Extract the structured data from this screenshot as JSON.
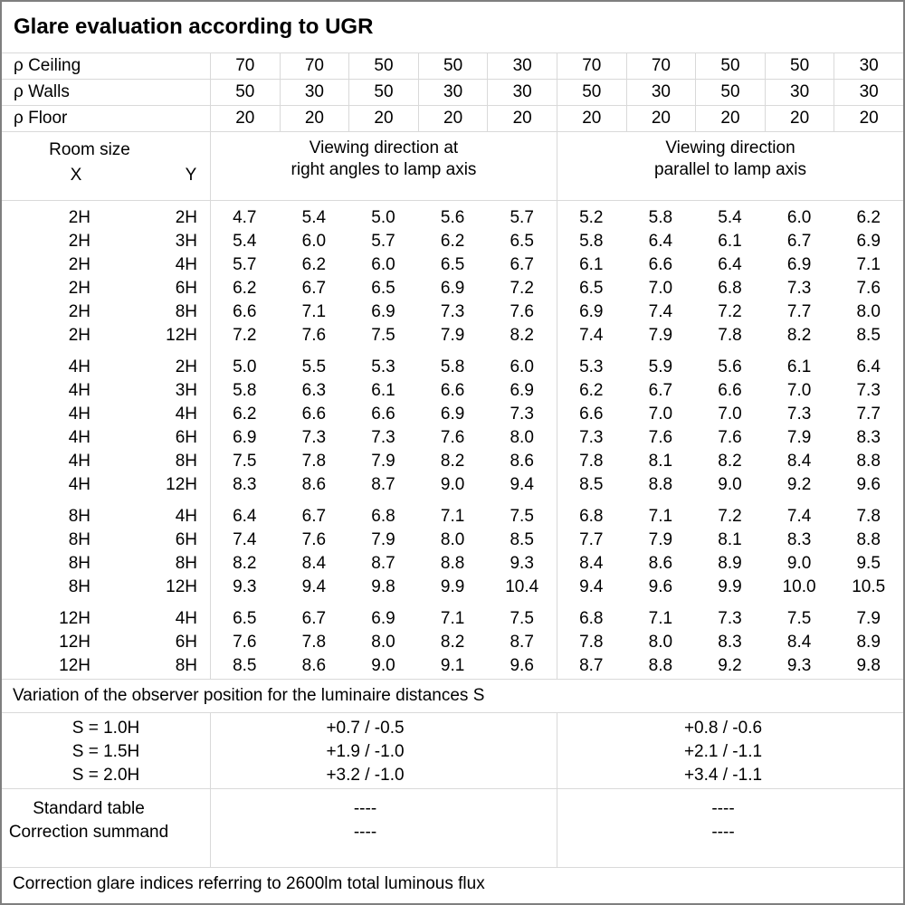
{
  "title": "Glare evaluation according to UGR",
  "reflectances": {
    "rows": [
      {
        "label": "ρ Ceiling",
        "values": [
          "70",
          "70",
          "50",
          "50",
          "30",
          "70",
          "70",
          "50",
          "50",
          "30"
        ]
      },
      {
        "label": "ρ Walls",
        "values": [
          "50",
          "30",
          "50",
          "30",
          "30",
          "50",
          "30",
          "50",
          "30",
          "30"
        ]
      },
      {
        "label": "ρ Floor",
        "values": [
          "20",
          "20",
          "20",
          "20",
          "20",
          "20",
          "20",
          "20",
          "20",
          "20"
        ]
      }
    ]
  },
  "header": {
    "room_size": "Room size",
    "x": "X",
    "y": "Y",
    "group_right_angles": [
      "Viewing direction at",
      "right angles to lamp axis"
    ],
    "group_parallel": [
      "Viewing direction",
      "parallel to lamp axis"
    ]
  },
  "ugr_blocks": [
    {
      "rows": [
        {
          "x": "2H",
          "y": "2H",
          "values": [
            "4.7",
            "5.4",
            "5.0",
            "5.6",
            "5.7",
            "5.2",
            "5.8",
            "5.4",
            "6.0",
            "6.2"
          ]
        },
        {
          "x": "2H",
          "y": "3H",
          "values": [
            "5.4",
            "6.0",
            "5.7",
            "6.2",
            "6.5",
            "5.8",
            "6.4",
            "6.1",
            "6.7",
            "6.9"
          ]
        },
        {
          "x": "2H",
          "y": "4H",
          "values": [
            "5.7",
            "6.2",
            "6.0",
            "6.5",
            "6.7",
            "6.1",
            "6.6",
            "6.4",
            "6.9",
            "7.1"
          ]
        },
        {
          "x": "2H",
          "y": "6H",
          "values": [
            "6.2",
            "6.7",
            "6.5",
            "6.9",
            "7.2",
            "6.5",
            "7.0",
            "6.8",
            "7.3",
            "7.6"
          ]
        },
        {
          "x": "2H",
          "y": "8H",
          "values": [
            "6.6",
            "7.1",
            "6.9",
            "7.3",
            "7.6",
            "6.9",
            "7.4",
            "7.2",
            "7.7",
            "8.0"
          ]
        },
        {
          "x": "2H",
          "y": "12H",
          "values": [
            "7.2",
            "7.6",
            "7.5",
            "7.9",
            "8.2",
            "7.4",
            "7.9",
            "7.8",
            "8.2",
            "8.5"
          ]
        }
      ]
    },
    {
      "rows": [
        {
          "x": "4H",
          "y": "2H",
          "values": [
            "5.0",
            "5.5",
            "5.3",
            "5.8",
            "6.0",
            "5.3",
            "5.9",
            "5.6",
            "6.1",
            "6.4"
          ]
        },
        {
          "x": "4H",
          "y": "3H",
          "values": [
            "5.8",
            "6.3",
            "6.1",
            "6.6",
            "6.9",
            "6.2",
            "6.7",
            "6.6",
            "7.0",
            "7.3"
          ]
        },
        {
          "x": "4H",
          "y": "4H",
          "values": [
            "6.2",
            "6.6",
            "6.6",
            "6.9",
            "7.3",
            "6.6",
            "7.0",
            "7.0",
            "7.3",
            "7.7"
          ]
        },
        {
          "x": "4H",
          "y": "6H",
          "values": [
            "6.9",
            "7.3",
            "7.3",
            "7.6",
            "8.0",
            "7.3",
            "7.6",
            "7.6",
            "7.9",
            "8.3"
          ]
        },
        {
          "x": "4H",
          "y": "8H",
          "values": [
            "7.5",
            "7.8",
            "7.9",
            "8.2",
            "8.6",
            "7.8",
            "8.1",
            "8.2",
            "8.4",
            "8.8"
          ]
        },
        {
          "x": "4H",
          "y": "12H",
          "values": [
            "8.3",
            "8.6",
            "8.7",
            "9.0",
            "9.4",
            "8.5",
            "8.8",
            "9.0",
            "9.2",
            "9.6"
          ]
        }
      ]
    },
    {
      "rows": [
        {
          "x": "8H",
          "y": "4H",
          "values": [
            "6.4",
            "6.7",
            "6.8",
            "7.1",
            "7.5",
            "6.8",
            "7.1",
            "7.2",
            "7.4",
            "7.8"
          ]
        },
        {
          "x": "8H",
          "y": "6H",
          "values": [
            "7.4",
            "7.6",
            "7.9",
            "8.0",
            "8.5",
            "7.7",
            "7.9",
            "8.1",
            "8.3",
            "8.8"
          ]
        },
        {
          "x": "8H",
          "y": "8H",
          "values": [
            "8.2",
            "8.4",
            "8.7",
            "8.8",
            "9.3",
            "8.4",
            "8.6",
            "8.9",
            "9.0",
            "9.5"
          ]
        },
        {
          "x": "8H",
          "y": "12H",
          "values": [
            "9.3",
            "9.4",
            "9.8",
            "9.9",
            "10.4",
            "9.4",
            "9.6",
            "9.9",
            "10.0",
            "10.5"
          ]
        }
      ]
    },
    {
      "rows": [
        {
          "x": "12H",
          "y": "4H",
          "values": [
            "6.5",
            "6.7",
            "6.9",
            "7.1",
            "7.5",
            "6.8",
            "7.1",
            "7.3",
            "7.5",
            "7.9"
          ]
        },
        {
          "x": "12H",
          "y": "6H",
          "values": [
            "7.6",
            "7.8",
            "8.0",
            "8.2",
            "8.7",
            "7.8",
            "8.0",
            "8.3",
            "8.4",
            "8.9"
          ]
        },
        {
          "x": "12H",
          "y": "8H",
          "values": [
            "8.5",
            "8.6",
            "9.0",
            "9.1",
            "9.6",
            "8.7",
            "8.8",
            "9.2",
            "9.3",
            "9.8"
          ]
        }
      ]
    }
  ],
  "variation": {
    "title": "Variation of the observer position for the luminaire distances S",
    "rows": [
      {
        "label": "S = 1.0H",
        "right_angles": "+0.7 / -0.5",
        "parallel": "+0.8 / -0.6"
      },
      {
        "label": "S = 1.5H",
        "right_angles": "+1.9 / -1.0",
        "parallel": "+2.1 / -1.1"
      },
      {
        "label": "S = 2.0H",
        "right_angles": "+3.2 / -1.0",
        "parallel": "+3.4 / -1.1"
      }
    ]
  },
  "summary": {
    "rows": [
      {
        "label": "Standard table",
        "right_angles": "----",
        "parallel": "----"
      },
      {
        "label": "Correction summand",
        "right_angles": "----",
        "parallel": "----"
      }
    ]
  },
  "footer": "Correction glare indices referring to 2600lm total luminous flux",
  "colors": {
    "grid_line": "#d9d9d9",
    "outer_border": "#7f7f7f",
    "text": "#000000",
    "background": "#ffffff"
  }
}
